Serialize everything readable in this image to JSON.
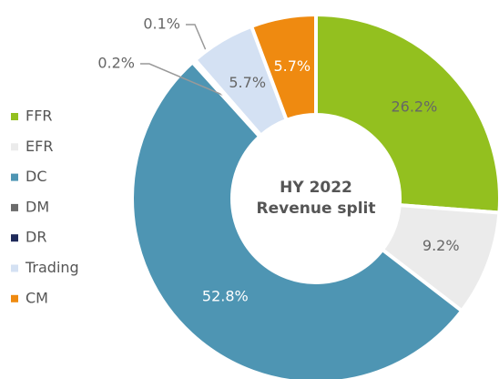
{
  "chart_data": {
    "type": "donut",
    "title": [
      "HY 2022",
      "Revenue split"
    ],
    "categories": [
      "FFR",
      "EFR",
      "DC",
      "DM",
      "DR",
      "Trading",
      "CM"
    ],
    "values": [
      26.2,
      9.2,
      52.8,
      0.2,
      0.1,
      5.7,
      5.7
    ],
    "value_labels": [
      "26.2%",
      "9.2%",
      "52.8%",
      "0.2%",
      "0.1%",
      "5.7%",
      "5.7%"
    ],
    "colors": [
      "#93c01f",
      "#ebebeb",
      "#4e95b3",
      "#6b6b6b",
      "#1f2a5a",
      "#d4e1f3",
      "#ef8a10"
    ],
    "legend": "left"
  }
}
